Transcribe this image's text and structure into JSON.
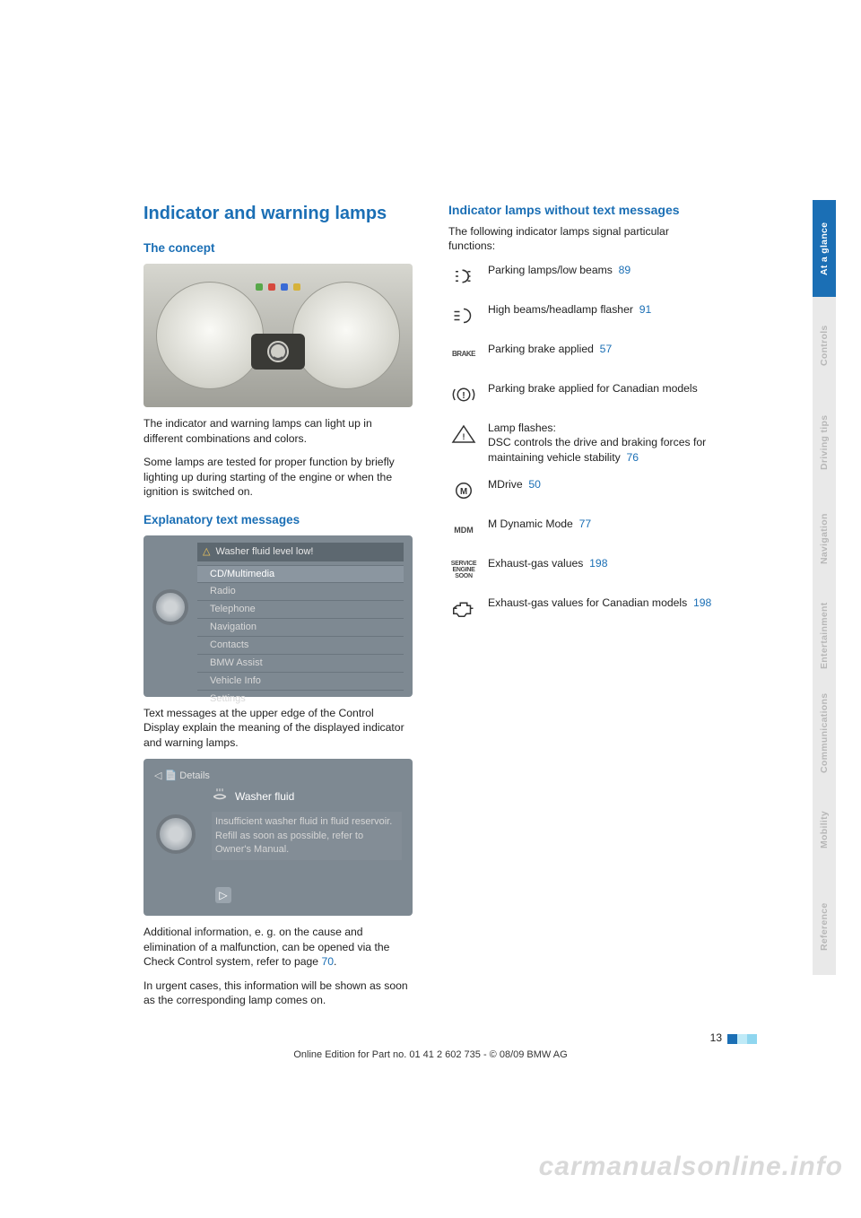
{
  "colors": {
    "accent": "#1b6fb5",
    "text": "#222222",
    "tab_inactive_bg": "#e9e9e9",
    "tab_inactive_fg": "#b7b7b7",
    "fig_bg": "#7e8992",
    "watermark": "#d9d9d9"
  },
  "left": {
    "heading": "Indicator and warning lamps",
    "concept_h": "The concept",
    "dash_indicators": [
      {
        "color": "#58a84a"
      },
      {
        "color": "#d64a3e"
      },
      {
        "color": "#3a6bd6"
      },
      {
        "color": "#d6b23a"
      }
    ],
    "concept_p1": "The indicator and warning lamps can light up in different combinations and colors.",
    "concept_p2": "Some lamps are tested for proper function by briefly lighting up during starting of the engine or when the ignition is switched on.",
    "explan_h": "Explanatory text messages",
    "menu_header": "Washer fluid level low!",
    "menu_items": [
      "CD/Multimedia",
      "Radio",
      "Telephone",
      "Navigation",
      "Contacts",
      "BMW Assist",
      "Vehicle Info",
      "Settings"
    ],
    "explan_p": "Text messages at the upper edge of the Control Display explain the meaning of the displayed indicator and warning lamps.",
    "details_header": "Details",
    "details_title": "Washer fluid",
    "details_msg": "Insufficient washer fluid in fluid reservoir. Refill as soon as possible, refer to Owner's Manual.",
    "add_p1_a": "Additional information, e. g. on the cause and elimination of a malfunction, can be opened via the Check Control system, refer to page ",
    "add_p1_link": "70",
    "add_p1_b": ".",
    "add_p2": "In urgent cases, this information will be shown as soon as the corresponding lamp comes on."
  },
  "right": {
    "heading": "Indicator lamps without text messages",
    "intro": "The following indicator lamps signal particular functions:",
    "rows": [
      {
        "icon": "lowbeam",
        "text": "Parking lamps/low beams",
        "link": "89"
      },
      {
        "icon": "highbeam",
        "text": "High beams/headlamp flasher",
        "link": "91"
      },
      {
        "icon": "brake_us",
        "text": "Parking brake applied",
        "link": "57"
      },
      {
        "icon": "brake_ca",
        "text": "Parking brake applied for Canadian models",
        "link": ""
      },
      {
        "icon": "dsc",
        "text": "Lamp flashes:\nDSC controls the drive and braking forces for maintaining vehicle stability",
        "link": "76"
      },
      {
        "icon": "mdrive",
        "text": "MDrive",
        "link": "50"
      },
      {
        "icon": "mdm",
        "text": "M Dynamic Mode",
        "link": "77"
      },
      {
        "icon": "svc",
        "text": "Exhaust-gas values",
        "link": "198"
      },
      {
        "icon": "engine",
        "text": "Exhaust-gas values for Canadian models",
        "link": "198"
      }
    ]
  },
  "tabs": [
    {
      "label": "At a glance",
      "active": true
    },
    {
      "label": "Controls",
      "active": false
    },
    {
      "label": "Driving tips",
      "active": false
    },
    {
      "label": "Navigation",
      "active": false
    },
    {
      "label": "Entertainment",
      "active": false
    },
    {
      "label": "Communications",
      "active": false
    },
    {
      "label": "Mobility",
      "active": false
    },
    {
      "label": "Reference",
      "active": false
    }
  ],
  "page_number": "13",
  "pn_colors": [
    "#1b6fb5",
    "#bfeaf7",
    "#8fd6ef"
  ],
  "footer": "Online Edition for Part no. 01 41 2 602 735 - © 08/09 BMW AG",
  "watermark": "carmanualsonline.info"
}
